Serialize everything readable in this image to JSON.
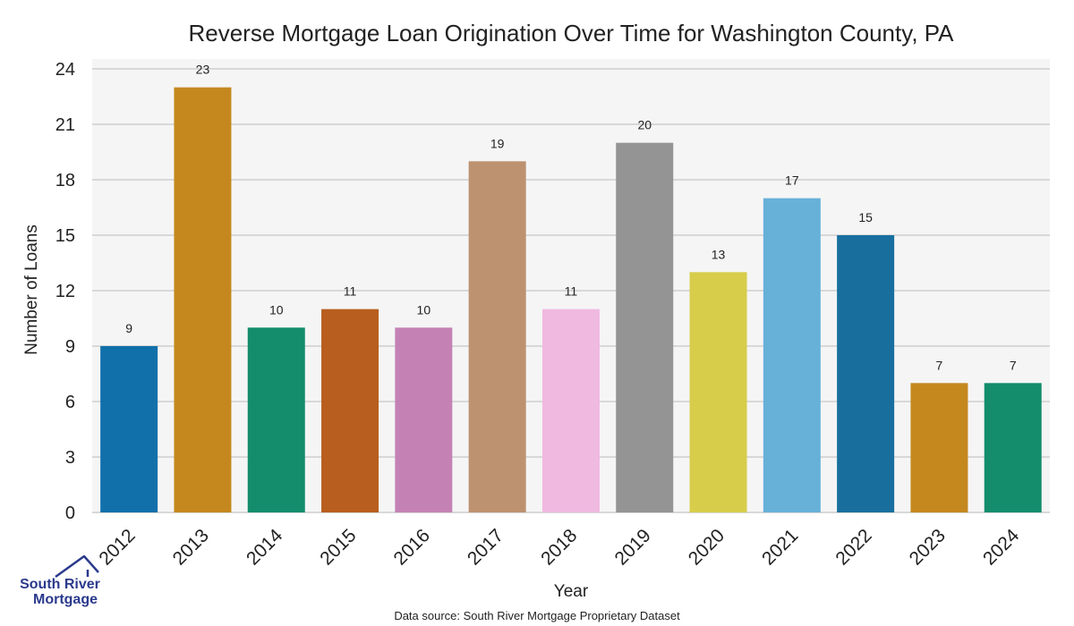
{
  "chart_data": {
    "type": "bar",
    "title": "Reverse Mortgage Loan Origination Over Time for Washington County, PA",
    "xlabel": "Year",
    "ylabel": "Number of Loans",
    "categories": [
      "2012",
      "2013",
      "2014",
      "2015",
      "2016",
      "2017",
      "2018",
      "2019",
      "2020",
      "2021",
      "2022",
      "2023",
      "2024"
    ],
    "values": [
      9,
      23,
      10,
      11,
      10,
      19,
      11,
      20,
      13,
      17,
      15,
      7,
      7
    ],
    "colors": [
      "#1170aa",
      "#c5881f",
      "#138d6c",
      "#b85e1e",
      "#c482b4",
      "#bd9270",
      "#f0b9e0",
      "#949494",
      "#d7cd4b",
      "#67b1d9",
      "#186f9e",
      "#c5881f",
      "#138d6c"
    ],
    "ylim": [
      0,
      24
    ],
    "yticks": [
      0,
      3,
      6,
      9,
      12,
      15,
      18,
      21,
      24
    ],
    "grid": true,
    "background": "#f5f5f5",
    "data_labels": true
  },
  "footer": {
    "source": "Data source: South River Mortgage Proprietary Dataset"
  },
  "logo": {
    "line1": "South River",
    "line2": "Mortgage",
    "icon": "house-roof-icon",
    "color": "#2b3a8c"
  }
}
